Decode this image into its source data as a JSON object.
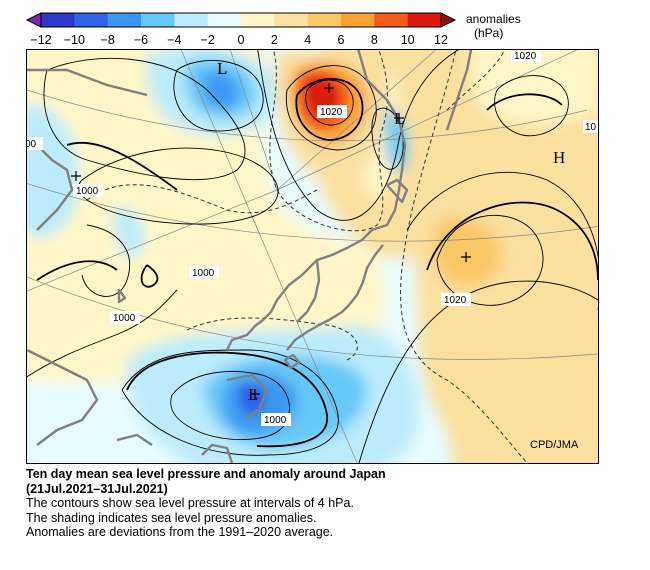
{
  "legend": {
    "ticks": [
      "−12",
      "−10",
      "−8",
      "−6",
      "−4",
      "−2",
      "0",
      "2",
      "4",
      "6",
      "8",
      "10",
      "12"
    ],
    "colors": [
      "#2a39c8",
      "#2f64e6",
      "#3b97f2",
      "#66c8f7",
      "#bcecfb",
      "#e6fbfd",
      "#fff6c8",
      "#fbe0a0",
      "#fac766",
      "#f7a233",
      "#f25b1c",
      "#dd1a10"
    ],
    "low_arrow_color": "#7d23b5",
    "high_arrow_color": "#8c1212",
    "unit_line1": "anomalies",
    "unit_line2": "(hPa)"
  },
  "map": {
    "pressure_labels": [
      "1020",
      "1020",
      "1020",
      "1000",
      "1000",
      "1000",
      "1000",
      "00",
      "10"
    ],
    "centers": {
      "low": "L",
      "high": "H"
    },
    "credit": "CPD/JMA",
    "contour_interval_hpa": 4,
    "land_outline_color": "#808080"
  },
  "caption": {
    "title": "Ten day mean sea level pressure and anomaly around Japan",
    "period": "(21Jul.2021–31Jul.2021)",
    "lines": [
      "The contours show sea level pressure at intervals of 4 hPa.",
      "The shading indicates sea level pressure anomalies.",
      "Anomalies are deviations from the 1991–2020 average."
    ]
  }
}
